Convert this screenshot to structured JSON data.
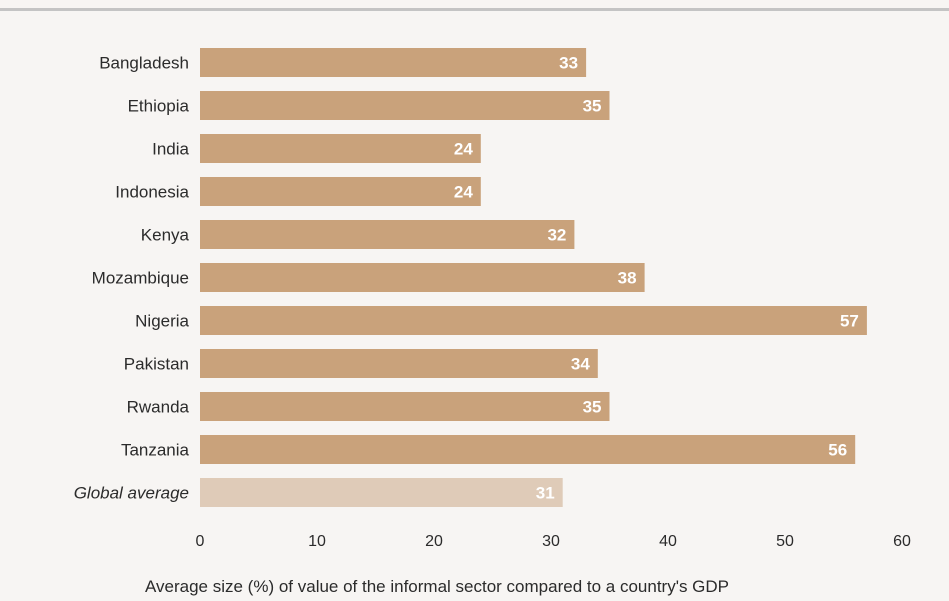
{
  "chart_data": {
    "type": "bar",
    "orientation": "horizontal",
    "categories": [
      "Bangladesh",
      "Ethiopia",
      "India",
      "Indonesia",
      "Kenya",
      "Mozambique",
      "Nigeria",
      "Pakistan",
      "Rwanda",
      "Tanzania",
      "Global average"
    ],
    "values": [
      33,
      35,
      24,
      24,
      32,
      38,
      57,
      34,
      35,
      56,
      31
    ],
    "value_labels": [
      "33",
      "35",
      "24",
      "24",
      "32",
      "38",
      "57",
      "34",
      "35",
      "56",
      "31"
    ],
    "highlight": {
      "category": "Global average",
      "style": "italic",
      "color": "#dfcbb8"
    },
    "xlim": [
      0,
      60
    ],
    "xticks": [
      0,
      10,
      20,
      30,
      40,
      50,
      60
    ],
    "xlabel": "Average size (%) of value of the informal sector compared to a country's GDP",
    "ylabel": "",
    "title": "",
    "grid": false,
    "colors": {
      "bar": "#c9a27b",
      "bar_highlight": "#dfcbb8",
      "value_text": "#ffffff",
      "background": "#f7f5f3",
      "top_rule": "#c4c4c4"
    }
  }
}
